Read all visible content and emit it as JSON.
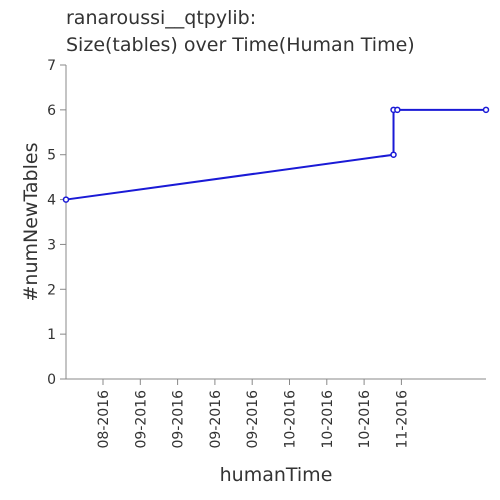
{
  "chart_data": {
    "type": "line",
    "title_line1": "ranaroussi__qtpylib:",
    "title_line2": "Size(tables) over Time(Human Time)",
    "xlabel": "humanTime",
    "ylabel": "#numNewTables",
    "x_tick_labels": [
      "08-2016",
      "09-2016",
      "09-2016",
      "09-2016",
      "09-2016",
      "10-2016",
      "10-2016",
      "10-2016",
      "11-2016"
    ],
    "y_ticks": [
      0,
      1,
      2,
      3,
      4,
      5,
      6,
      7
    ],
    "ylim": [
      0,
      7
    ],
    "grid": false,
    "series": [
      {
        "values": [
          {
            "x": "2016-07-15",
            "y": 4
          },
          {
            "x": "2016-10-08",
            "y": 5
          },
          {
            "x": "2016-10-08",
            "y": 6
          },
          {
            "x": "2016-10-09",
            "y": 6
          },
          {
            "x": "2016-11-01",
            "y": 6
          }
        ],
        "color": "#1a1ad6"
      }
    ]
  }
}
